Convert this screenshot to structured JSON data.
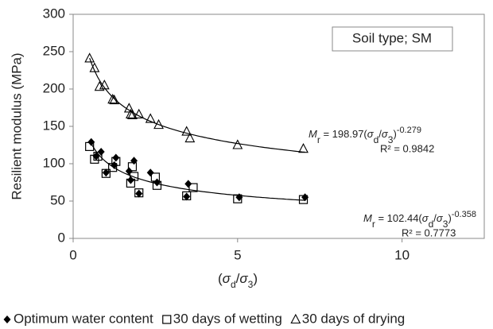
{
  "chart_data": {
    "type": "scatter",
    "x_label_parts": [
      {
        "text": "(",
        "style": "normal"
      },
      {
        "text": "σ",
        "style": "italic"
      },
      {
        "text": "d",
        "style": "sub"
      },
      {
        "text": "/",
        "style": "normal"
      },
      {
        "text": "σ",
        "style": "italic"
      },
      {
        "text": "3",
        "style": "sub"
      },
      {
        "text": ")",
        "style": "normal"
      }
    ],
    "y_label": "Resilient modulus (MPa)",
    "xlim": [
      0,
      12.5
    ],
    "xticks": [
      0,
      5,
      10
    ],
    "ylim": [
      0,
      300
    ],
    "yticks": [
      0,
      50,
      100,
      150,
      200,
      250,
      300
    ],
    "grid": false,
    "legend": "bottom",
    "annotation": "Soil type; SM",
    "series": [
      {
        "name": "Optimum water content",
        "color": "#000000",
        "marker": "diamond",
        "x": [
          0.55,
          0.7,
          0.85,
          1.0,
          1.25,
          1.3,
          1.7,
          1.75,
          1.85,
          2.0,
          2.35,
          2.55,
          3.45,
          3.5,
          5.05,
          7.05
        ],
        "values": [
          129,
          110,
          116,
          88,
          98,
          108,
          90,
          78,
          104,
          60,
          88,
          75,
          56,
          73,
          55,
          55
        ]
      },
      {
        "name": "30 days of wetting",
        "color": "#000000",
        "marker": "square",
        "x": [
          0.5,
          0.65,
          0.75,
          1.0,
          1.2,
          1.3,
          1.75,
          1.8,
          1.85,
          2.0,
          2.5,
          2.55,
          3.45,
          3.65,
          5.0,
          7.0
        ],
        "values": [
          123,
          106,
          110,
          87,
          95,
          103,
          74,
          96,
          83,
          61,
          82,
          71,
          57,
          68,
          53,
          52
        ]
      },
      {
        "name": "30 days of drying",
        "color": "#000000",
        "marker": "triangle",
        "x": [
          0.5,
          0.65,
          0.8,
          0.95,
          1.2,
          1.25,
          1.7,
          1.75,
          1.8,
          2.0,
          2.35,
          2.6,
          3.45,
          3.55,
          5.0,
          7.0
        ],
        "values": [
          241,
          228,
          203,
          205,
          186,
          185,
          174,
          166,
          165,
          166,
          160,
          152,
          143,
          134,
          125,
          120
        ]
      }
    ],
    "trendlines": [
      {
        "coefficient": 198.97,
        "exponent": -0.279,
        "equation_parts": [
          {
            "text": "M",
            "style": "italic"
          },
          {
            "text": "r",
            "style": "sub"
          },
          {
            "text": " = 198.97(",
            "style": "normal"
          },
          {
            "text": "σ",
            "style": "italic"
          },
          {
            "text": "d",
            "style": "sub"
          },
          {
            "text": "/",
            "style": "normal"
          },
          {
            "text": "σ",
            "style": "italic"
          },
          {
            "text": "3",
            "style": "sub"
          },
          {
            "text": ")",
            "style": "normal"
          },
          {
            "text": "-0.279",
            "style": "sup"
          }
        ],
        "r2_label": "R² = 0.9842"
      },
      {
        "coefficient": 102.44,
        "exponent": -0.358,
        "equation_parts": [
          {
            "text": "M",
            "style": "italic"
          },
          {
            "text": "r",
            "style": "sub"
          },
          {
            "text": " = 102.44(",
            "style": "normal"
          },
          {
            "text": "σ",
            "style": "italic"
          },
          {
            "text": "d",
            "style": "sub"
          },
          {
            "text": "/",
            "style": "normal"
          },
          {
            "text": "σ",
            "style": "italic"
          },
          {
            "text": "3",
            "style": "sub"
          },
          {
            "text": ")",
            "style": "normal"
          },
          {
            "text": "-0.358",
            "style": "sup"
          }
        ],
        "r2_label": "R² = 0.7773"
      }
    ]
  }
}
